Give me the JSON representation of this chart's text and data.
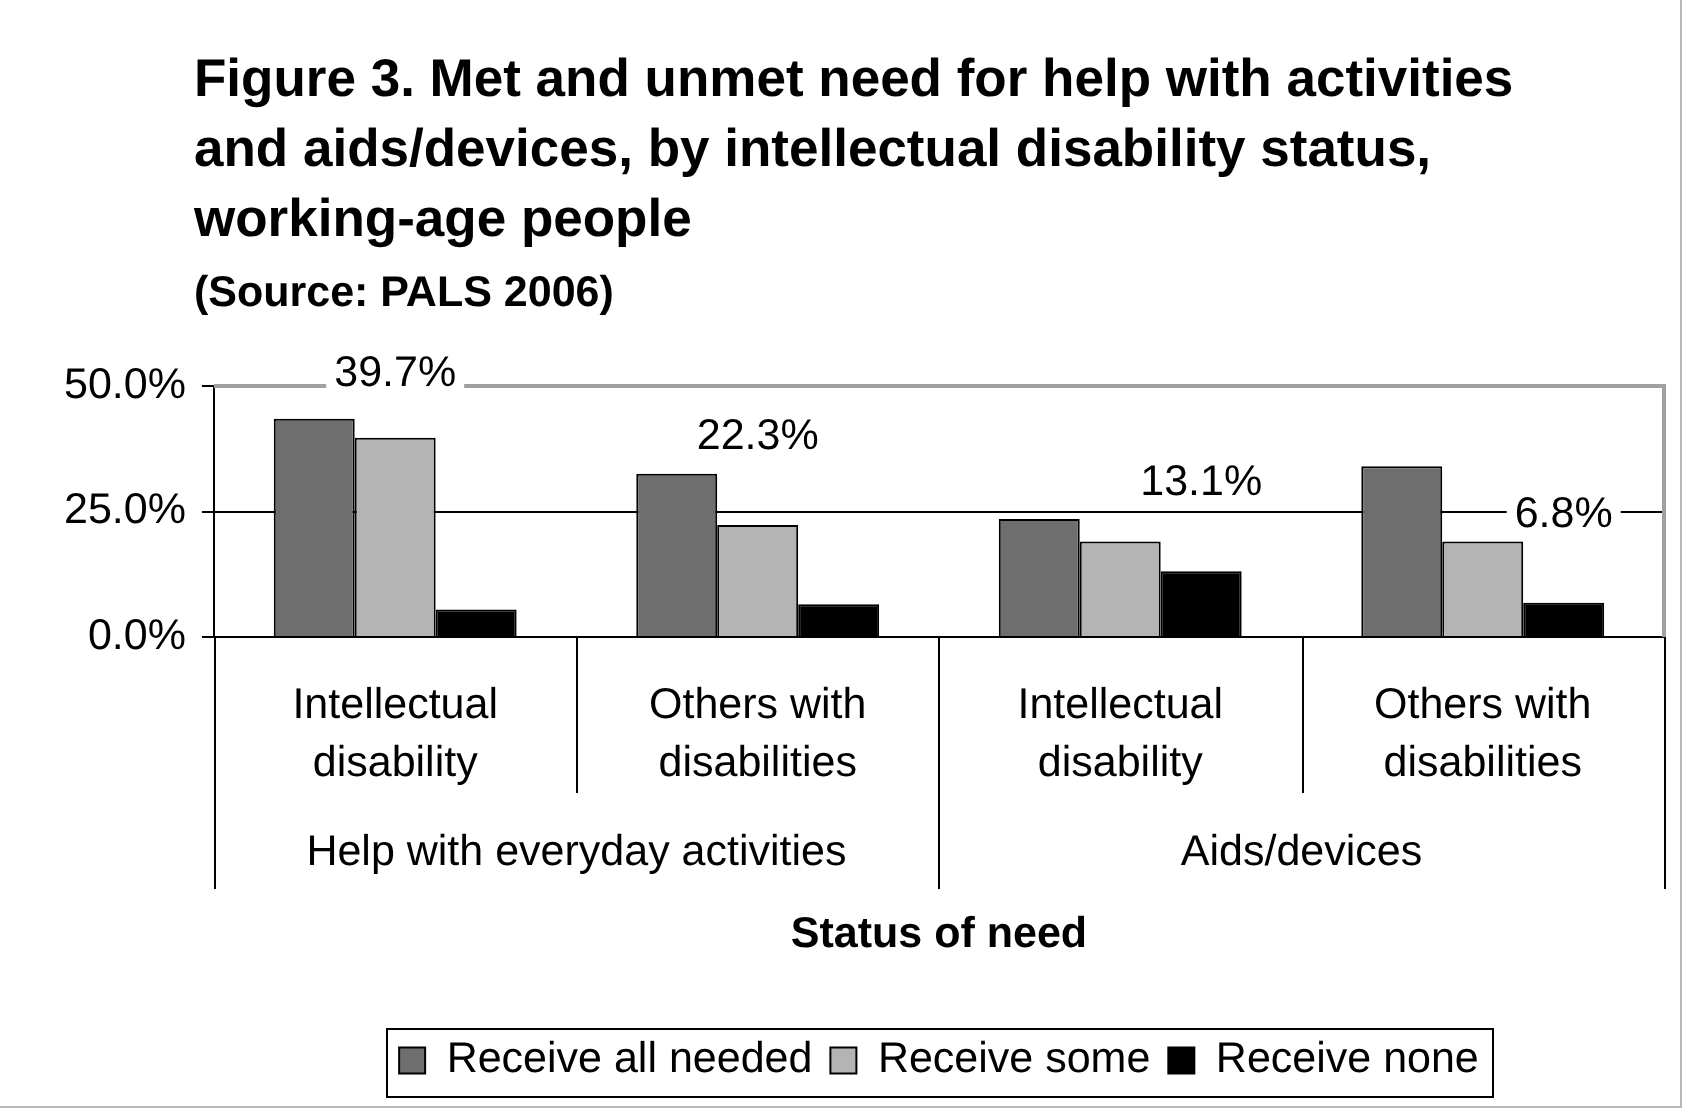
{
  "chart_data": {
    "type": "bar",
    "title": "Figure 3. Met and unmet need for help with activities and aids/devices, by intellectual disability status, working-age people",
    "subtitle": "(Source: PALS 2006)",
    "xlabel": "Status of need",
    "categories": [
      "Intellectual disability",
      "Others with disabilities",
      "Intellectual disability",
      "Others with disabilities"
    ],
    "annotations": [
      "Help with everyday activities",
      "Aids/devices"
    ],
    "series": [
      {
        "name": "Receive all needed",
        "color": "#6e6e6e",
        "values": [
          43.5,
          32.5,
          23.5,
          34
        ]
      },
      {
        "name": "Receive some",
        "color": "#b4b4b4",
        "values": [
          39.7,
          22.3,
          19,
          19
        ],
        "value_labels": [
          "39.7%",
          "22.3%",
          null,
          null
        ]
      },
      {
        "name": "Receive none",
        "color": "#000000",
        "values": [
          5.5,
          6.5,
          13.1,
          6.8
        ],
        "value_labels": [
          null,
          null,
          "13.1%",
          "6.8%"
        ]
      }
    ],
    "ylim": [
      0,
      50
    ],
    "yticks": [
      {
        "value": 0,
        "label": "0.0%"
      },
      {
        "value": 25,
        "label": "25.0%"
      },
      {
        "value": 50,
        "label": "50.0%"
      }
    ],
    "grid": "y",
    "legend": "bottom"
  }
}
